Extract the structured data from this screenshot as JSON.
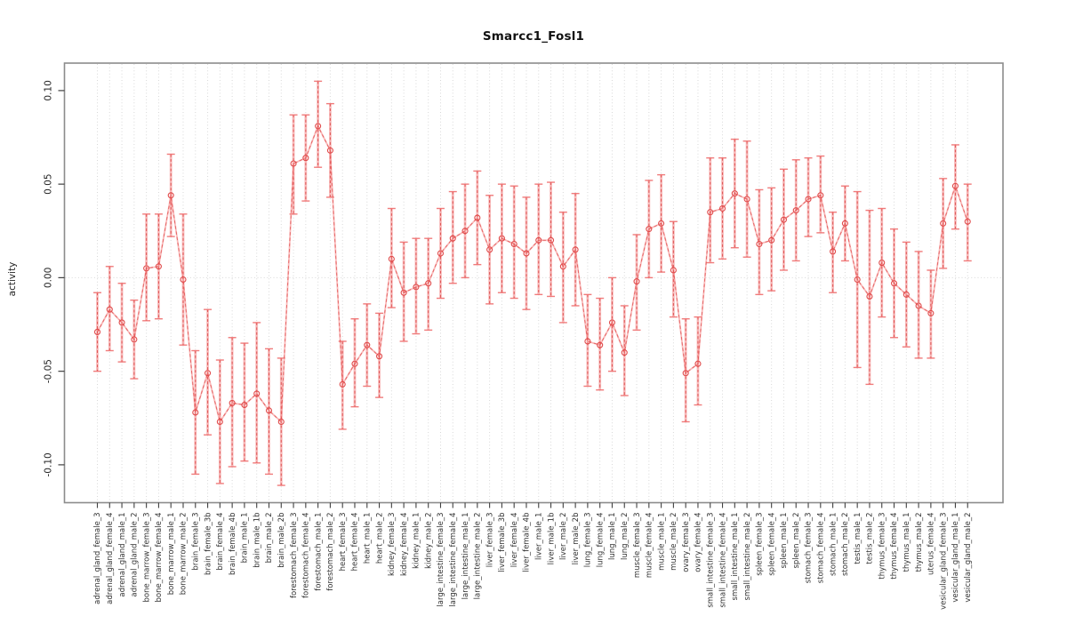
{
  "chart_data": {
    "type": "line-errorbar",
    "title": "Smarcc1_Fosl1",
    "xlabel": "",
    "ylabel": "activity",
    "ylim": [
      -0.115,
      0.108
    ],
    "ytick_values": [
      -0.1,
      -0.05,
      0.0,
      0.05,
      0.1
    ],
    "ytick_labels": [
      "-0.10",
      "-0.05",
      "0.00",
      "0.05",
      "0.10"
    ],
    "grid": {
      "vertical_dotted_per_category": true,
      "horizontal_zero_line_dotted": true,
      "legend": "none"
    },
    "colors": {
      "series_solid": "#f58080",
      "series_dashed": "#dd4b4b",
      "marker": "#e04b4b",
      "errorbar_solid": "#f26a6a",
      "errorbar_cap": "#ee6e6e",
      "grid": "#d8d8d8",
      "axis_box": "#8c8c8c",
      "tick": "#404040",
      "label_text": "#333333"
    },
    "categories": [
      "adrenal_gland_female_3",
      "adrenal_gland_female_4",
      "adrenal_gland_male_1",
      "adrenal_gland_male_2",
      "bone_marrow_female_3",
      "bone_marrow_female_4",
      "bone_marrow_male_1",
      "bone_marrow_male_2",
      "brain_female_3",
      "brain_female_3b",
      "brain_female_4",
      "brain_female_4b",
      "brain_male_1",
      "brain_male_1b",
      "brain_male_2",
      "brain_male_2b",
      "forestomach_female_3",
      "forestomach_female_4",
      "forestomach_male_1",
      "forestomach_male_2",
      "heart_female_3",
      "heart_female_4",
      "heart_male_1",
      "heart_male_2",
      "kidney_female_3",
      "kidney_female_4",
      "kidney_male_1",
      "kidney_male_2",
      "large_intestine_female_3",
      "large_intestine_female_4",
      "large_intestine_male_1",
      "large_intestine_male_2",
      "liver_female_3",
      "liver_female_3b",
      "liver_female_4",
      "liver_female_4b",
      "liver_male_1",
      "liver_male_1b",
      "liver_male_2",
      "liver_male_2b",
      "lung_female_3",
      "lung_female_4",
      "lung_male_1",
      "lung_male_2",
      "muscle_female_3",
      "muscle_female_4",
      "muscle_male_1",
      "muscle_male_2",
      "ovary_female_3",
      "ovary_female_4",
      "small_intestine_female_3",
      "small_intestine_female_4",
      "small_intestine_male_1",
      "small_intestine_male_2",
      "spleen_female_3",
      "spleen_female_4",
      "spleen_male_1",
      "spleen_male_2",
      "stomach_female_3",
      "stomach_female_4",
      "stomach_male_1",
      "stomach_male_2",
      "testis_male_1",
      "testis_male_2",
      "thymus_female_3",
      "thymus_female_4",
      "thymus_male_1",
      "thymus_male_2",
      "uterus_female_4",
      "vesicular_gland_female_3",
      "vesicular_gland_male_1",
      "vesicular_gland_male_2"
    ],
    "values": [
      -0.029,
      -0.017,
      -0.024,
      -0.033,
      0.005,
      0.006,
      0.044,
      -0.001,
      -0.072,
      -0.051,
      -0.077,
      -0.067,
      -0.068,
      -0.062,
      -0.071,
      -0.077,
      0.061,
      0.064,
      0.081,
      0.068,
      -0.057,
      -0.046,
      -0.036,
      -0.042,
      0.01,
      -0.008,
      -0.005,
      -0.003,
      0.013,
      0.021,
      0.025,
      0.032,
      0.015,
      0.021,
      0.018,
      0.013,
      0.02,
      0.02,
      0.006,
      0.015,
      -0.034,
      -0.036,
      -0.024,
      -0.04,
      -0.002,
      0.026,
      0.029,
      0.004,
      -0.051,
      -0.046,
      0.035,
      0.037,
      0.045,
      0.042,
      0.018,
      0.02,
      0.031,
      0.036,
      0.042,
      0.044,
      0.014,
      0.029,
      -0.001,
      -0.01,
      0.008,
      -0.003,
      -0.009,
      -0.015,
      -0.019,
      0.029,
      0.049,
      0.03
    ],
    "lower": [
      -0.05,
      -0.039,
      -0.045,
      -0.054,
      -0.023,
      -0.022,
      0.022,
      -0.036,
      -0.105,
      -0.084,
      -0.11,
      -0.101,
      -0.098,
      -0.099,
      -0.105,
      -0.111,
      0.034,
      0.041,
      0.059,
      0.043,
      -0.081,
      -0.069,
      -0.058,
      -0.064,
      -0.016,
      -0.034,
      -0.03,
      -0.028,
      -0.011,
      -0.003,
      0.0,
      0.007,
      -0.014,
      -0.008,
      -0.011,
      -0.017,
      -0.009,
      -0.01,
      -0.024,
      -0.015,
      -0.058,
      -0.06,
      -0.05,
      -0.063,
      -0.028,
      0.0,
      0.003,
      -0.021,
      -0.077,
      -0.068,
      0.008,
      0.01,
      0.016,
      0.011,
      -0.009,
      -0.007,
      0.004,
      0.009,
      0.022,
      0.024,
      -0.008,
      0.009,
      -0.048,
      -0.057,
      -0.021,
      -0.032,
      -0.037,
      -0.043,
      -0.043,
      0.005,
      0.026,
      0.009
    ],
    "upper": [
      -0.008,
      0.006,
      -0.003,
      -0.012,
      0.034,
      0.034,
      0.066,
      0.034,
      -0.039,
      -0.017,
      -0.044,
      -0.032,
      -0.035,
      -0.024,
      -0.038,
      -0.043,
      0.087,
      0.087,
      0.105,
      0.093,
      -0.034,
      -0.022,
      -0.014,
      -0.019,
      0.037,
      0.019,
      0.021,
      0.021,
      0.037,
      0.046,
      0.05,
      0.057,
      0.044,
      0.05,
      0.049,
      0.043,
      0.05,
      0.051,
      0.035,
      0.045,
      -0.009,
      -0.011,
      0.0,
      -0.015,
      0.023,
      0.052,
      0.055,
      0.03,
      -0.022,
      -0.021,
      0.064,
      0.064,
      0.074,
      0.073,
      0.047,
      0.048,
      0.058,
      0.063,
      0.064,
      0.065,
      0.035,
      0.049,
      0.046,
      0.036,
      0.037,
      0.026,
      0.019,
      0.014,
      0.004,
      0.053,
      0.071,
      0.05
    ]
  }
}
